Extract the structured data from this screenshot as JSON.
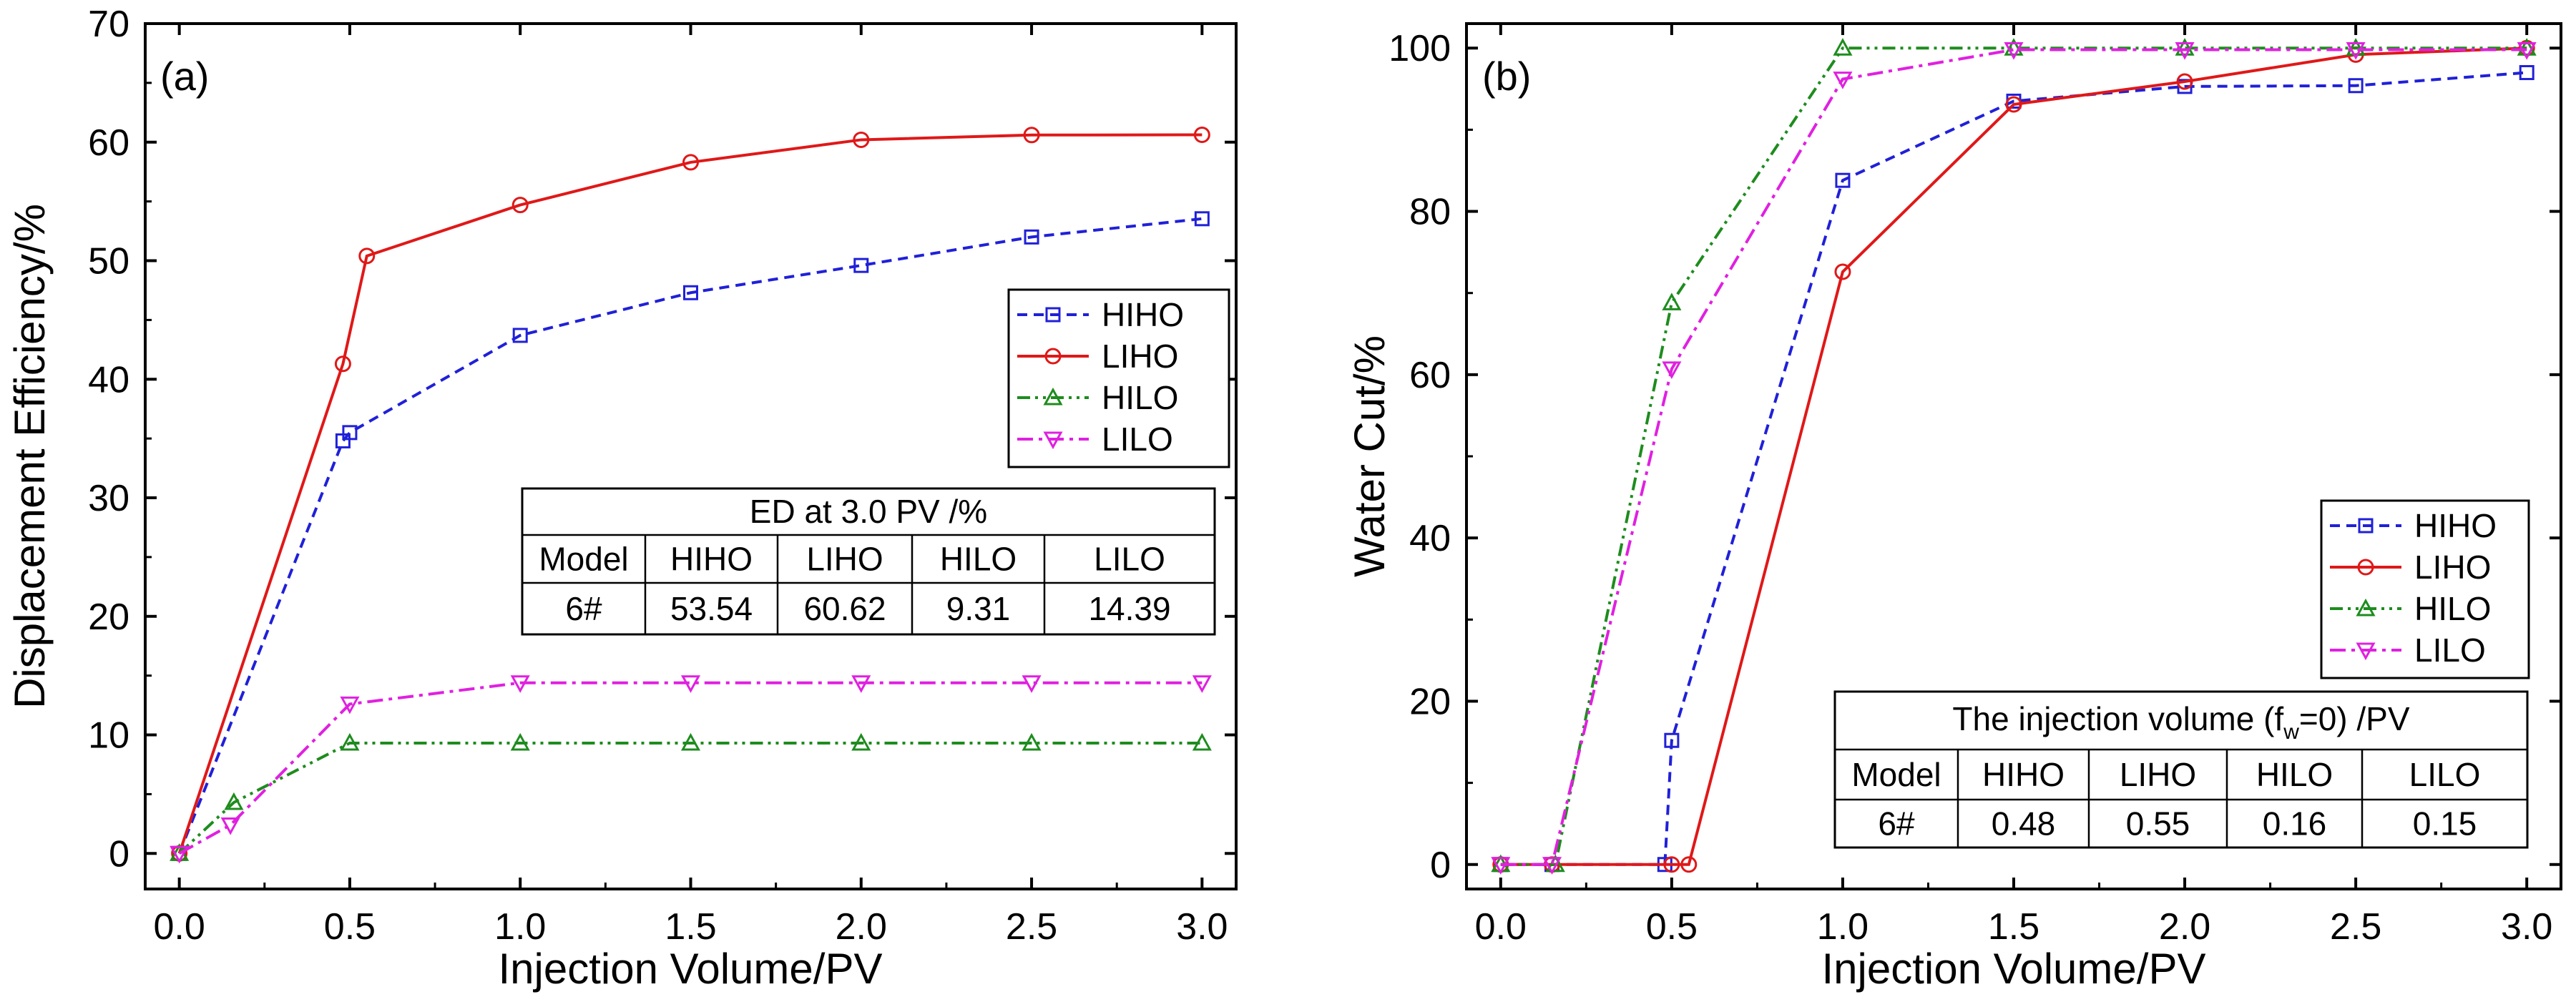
{
  "chart_data": [
    {
      "type": "line",
      "panel_label": "(a)",
      "xlabel": "Injection Volume/PV",
      "ylabel": "Displacement Efficiency/%",
      "xlim": [
        -0.1,
        3.1
      ],
      "ylim": [
        -3,
        70
      ],
      "xticks": [
        "0.0",
        "0.5",
        "1.0",
        "1.5",
        "2.0",
        "2.5",
        "3.0"
      ],
      "yticks": [
        "0",
        "10",
        "20",
        "30",
        "40",
        "50",
        "60",
        "70"
      ],
      "xtick_values": [
        0,
        0.5,
        1.0,
        1.5,
        2.0,
        2.5,
        3.0
      ],
      "ytick_values": [
        0,
        10,
        20,
        30,
        40,
        50,
        60,
        70
      ],
      "grid": false,
      "legend_position": "right-middle",
      "series": [
        {
          "name": "HIHO",
          "color": "#2020d8",
          "dash": "dash",
          "marker": "square",
          "x": [
            0,
            0.48,
            0.5,
            1.0,
            1.5,
            2.0,
            2.5,
            3.0
          ],
          "y": [
            0,
            34.8,
            35.5,
            43.7,
            47.3,
            49.6,
            52.0,
            53.54
          ]
        },
        {
          "name": "LIHO",
          "color": "#e01818",
          "dash": "solid",
          "marker": "circle",
          "x": [
            0,
            0.48,
            0.55,
            1.0,
            1.5,
            2.0,
            2.5,
            3.0
          ],
          "y": [
            0,
            41.3,
            50.4,
            54.7,
            58.3,
            60.2,
            60.6,
            60.62
          ]
        },
        {
          "name": "HILO",
          "color": "#1e8c1e",
          "dash": "dashdotdot",
          "marker": "triangle-up",
          "x": [
            0,
            0.16,
            0.5,
            1.0,
            1.5,
            2.0,
            2.5,
            3.0
          ],
          "y": [
            0,
            4.3,
            9.31,
            9.31,
            9.31,
            9.31,
            9.31,
            9.31
          ]
        },
        {
          "name": "LILO",
          "color": "#e020e0",
          "dash": "dashdot",
          "marker": "triangle-down",
          "x": [
            0,
            0.15,
            0.5,
            1.0,
            1.5,
            2.0,
            2.5,
            3.0
          ],
          "y": [
            0,
            2.4,
            12.6,
            14.39,
            14.39,
            14.39,
            14.39,
            14.39
          ]
        }
      ],
      "table": {
        "title": "ED at 3.0 PV /%",
        "header": [
          "Model",
          "HIHO",
          "LIHO",
          "HILO",
          "LILO"
        ],
        "row": [
          "6#",
          "53.54",
          "60.62",
          "9.31",
          "14.39"
        ]
      }
    },
    {
      "type": "line",
      "panel_label": "(b)",
      "xlabel": "Injection Volume/PV",
      "ylabel": "Water Cut/%",
      "xlim": [
        -0.1,
        3.1
      ],
      "ylim": [
        -3,
        103
      ],
      "xticks": [
        "0.0",
        "0.5",
        "1.0",
        "1.5",
        "2.0",
        "2.5",
        "3.0"
      ],
      "yticks": [
        "0",
        "20",
        "40",
        "60",
        "80",
        "100"
      ],
      "xtick_values": [
        0,
        0.5,
        1.0,
        1.5,
        2.0,
        2.5,
        3.0
      ],
      "ytick_values": [
        0,
        20,
        40,
        60,
        80,
        100
      ],
      "grid": false,
      "legend_position": "right-middle",
      "series": [
        {
          "name": "HIHO",
          "color": "#2020d8",
          "dash": "dash",
          "marker": "square",
          "x": [
            0,
            0.15,
            0.48,
            0.5,
            1.0,
            1.5,
            2.0,
            2.5,
            3.0
          ],
          "y": [
            0,
            0,
            0,
            15.2,
            83.8,
            93.5,
            95.3,
            95.4,
            97.0
          ]
        },
        {
          "name": "LIHO",
          "color": "#e01818",
          "dash": "solid",
          "marker": "circle",
          "x": [
            0,
            0.15,
            0.5,
            0.55,
            1.0,
            1.5,
            2.0,
            2.5,
            3.0
          ],
          "y": [
            0,
            0,
            0,
            0,
            72.6,
            93.1,
            95.9,
            99.2,
            100
          ]
        },
        {
          "name": "HILO",
          "color": "#1e8c1e",
          "dash": "dashdotdot",
          "marker": "triangle-up",
          "x": [
            0,
            0.16,
            0.5,
            1.0,
            1.5,
            2.0,
            2.5,
            3.0
          ],
          "y": [
            0,
            0,
            68.8,
            100,
            100,
            100,
            100,
            100
          ]
        },
        {
          "name": "LILO",
          "color": "#e020e0",
          "dash": "dashdot",
          "marker": "triangle-down",
          "x": [
            0,
            0.15,
            0.5,
            1.0,
            1.5,
            2.0,
            2.5,
            3.0
          ],
          "y": [
            0,
            0,
            60.7,
            96.2,
            99.8,
            99.8,
            99.8,
            99.8
          ]
        }
      ],
      "table": {
        "title_main": "The injection volume (f",
        "title_sub": "w",
        "title_end": "=0) /PV",
        "header": [
          "Model",
          "HIHO",
          "LIHO",
          "HILO",
          "LILO"
        ],
        "row": [
          "6#",
          "0.48",
          "0.55",
          "0.16",
          "0.15"
        ]
      }
    }
  ]
}
